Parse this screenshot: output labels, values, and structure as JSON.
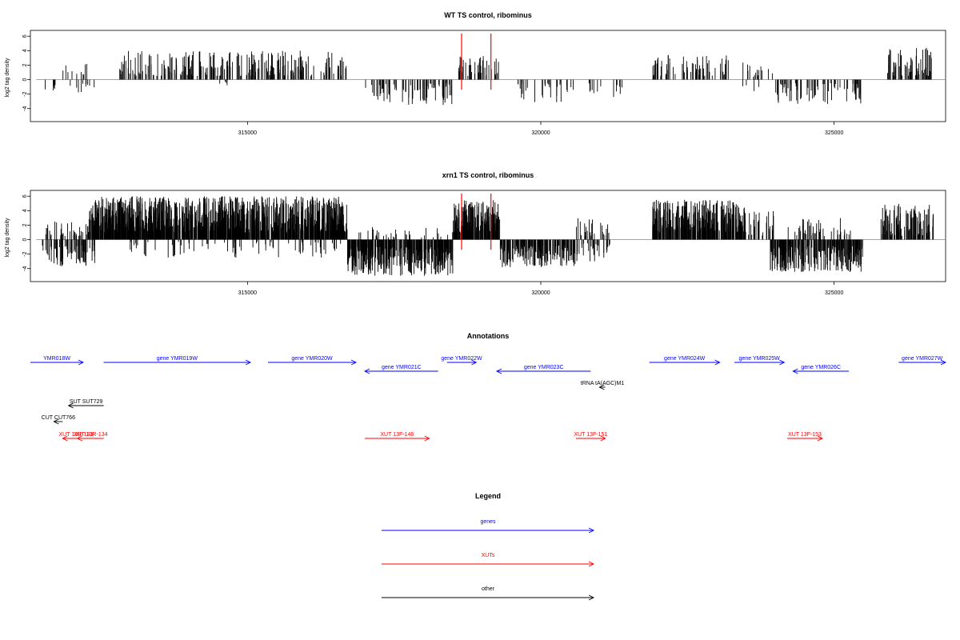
{
  "chart_data": [
    {
      "type": "bar",
      "title": "WT TS control, ribominus",
      "ylabel": "log2 tag density",
      "xlabel": "",
      "xlim": [
        311300,
        326900
      ],
      "ylim": [
        -5.8,
        6.8
      ],
      "xticks": [
        315000,
        320000,
        325000
      ],
      "xtick_labels": [
        "315000",
        "320000",
        "325000"
      ],
      "yticks": [
        -4,
        -2,
        0,
        2,
        4,
        6
      ],
      "ytick_labels": [
        "-4",
        "-2",
        "0",
        "2",
        "4",
        "6"
      ],
      "bar_color": "#000000",
      "highlight_color": "#ff0000",
      "highlights": [
        318650,
        319150
      ],
      "segments": [
        {
          "range": [
            311500,
            311800
          ],
          "sign": -1,
          "min": 0.5,
          "max": 1.5,
          "density": 0.02
        },
        {
          "range": [
            311800,
            312300
          ],
          "sign": 1,
          "min": 0.5,
          "max": 2.5,
          "density": 0.02
        },
        {
          "range": [
            311900,
            312400
          ],
          "sign": -1,
          "min": 0.5,
          "max": 2,
          "density": 0.02
        },
        {
          "range": [
            312800,
            316700
          ],
          "sign": 1,
          "min": 0.5,
          "max": 4,
          "density": 0.06
        },
        {
          "range": [
            314400,
            314800
          ],
          "sign": -1,
          "min": 0.3,
          "max": 1.5,
          "density": 0.01
        },
        {
          "range": [
            317000,
            318500
          ],
          "sign": -1,
          "min": 0.5,
          "max": 3.5,
          "density": 0.05
        },
        {
          "range": [
            318600,
            319300
          ],
          "sign": 1,
          "min": 0.5,
          "max": 3.5,
          "density": 0.06
        },
        {
          "range": [
            319600,
            320600
          ],
          "sign": -1,
          "min": 0.5,
          "max": 3.5,
          "density": 0.03
        },
        {
          "range": [
            320700,
            321400
          ],
          "sign": -1,
          "min": 0.5,
          "max": 2.5,
          "density": 0.02
        },
        {
          "range": [
            321900,
            323200
          ],
          "sign": 1,
          "min": 0.5,
          "max": 3.5,
          "density": 0.05
        },
        {
          "range": [
            323300,
            324000
          ],
          "sign": 1,
          "min": 0.3,
          "max": 2.5,
          "density": 0.02
        },
        {
          "range": [
            323400,
            323800
          ],
          "sign": -1,
          "min": 0.5,
          "max": 2,
          "density": 0.01
        },
        {
          "range": [
            324000,
            325500
          ],
          "sign": -1,
          "min": 0.5,
          "max": 3.5,
          "density": 0.05
        },
        {
          "range": [
            325900,
            326700
          ],
          "sign": 1,
          "min": 0.5,
          "max": 4.5,
          "density": 0.08
        }
      ]
    },
    {
      "type": "bar",
      "title": "xrn1 TS control, ribominus",
      "ylabel": "log2 tag density",
      "xlabel": "",
      "xlim": [
        311300,
        326900
      ],
      "ylim": [
        -5.8,
        6.8
      ],
      "xticks": [
        315000,
        320000,
        325000
      ],
      "xtick_labels": [
        "315000",
        "320000",
        "325000"
      ],
      "yticks": [
        -4,
        -2,
        0,
        2,
        4,
        6
      ],
      "ytick_labels": [
        "-4",
        "-2",
        "0",
        "2",
        "4",
        "6"
      ],
      "bar_color": "#000000",
      "highlight_color": "#ff0000",
      "highlights": [
        318650,
        319150
      ],
      "segments": [
        {
          "range": [
            311500,
            312300
          ],
          "sign": 1,
          "min": 0.5,
          "max": 2.5,
          "density": 0.05
        },
        {
          "range": [
            311500,
            312400
          ],
          "sign": -1,
          "min": 0.8,
          "max": 4,
          "density": 0.08
        },
        {
          "range": [
            312300,
            316700
          ],
          "sign": 1,
          "min": 1,
          "max": 6,
          "density": 0.22
        },
        {
          "range": [
            312800,
            316600
          ],
          "sign": -1,
          "min": 0.3,
          "max": 2.5,
          "density": 0.02
        },
        {
          "range": [
            316700,
            318500
          ],
          "sign": -1,
          "min": 1,
          "max": 5,
          "density": 0.18
        },
        {
          "range": [
            316900,
            318500
          ],
          "sign": 1,
          "min": 0.3,
          "max": 2,
          "density": 0.02
        },
        {
          "range": [
            318500,
            319300
          ],
          "sign": 1,
          "min": 1,
          "max": 5.5,
          "density": 0.22
        },
        {
          "range": [
            319300,
            320600
          ],
          "sign": -1,
          "min": 0.8,
          "max": 3.8,
          "density": 0.12
        },
        {
          "range": [
            320600,
            321200
          ],
          "sign": -1,
          "min": 0.5,
          "max": 3,
          "density": 0.05
        },
        {
          "range": [
            320600,
            321200
          ],
          "sign": 1,
          "min": 0.5,
          "max": 3,
          "density": 0.04
        },
        {
          "range": [
            321900,
            323500
          ],
          "sign": 1,
          "min": 1,
          "max": 5.5,
          "density": 0.2
        },
        {
          "range": [
            323500,
            324000
          ],
          "sign": 1,
          "min": 0.5,
          "max": 4,
          "density": 0.05
        },
        {
          "range": [
            323900,
            325500
          ],
          "sign": -1,
          "min": 0.8,
          "max": 4.5,
          "density": 0.15
        },
        {
          "range": [
            324200,
            325300
          ],
          "sign": 1,
          "min": 0.5,
          "max": 3,
          "density": 0.04
        },
        {
          "range": [
            325800,
            326700
          ],
          "sign": 1,
          "min": 0.5,
          "max": 5,
          "density": 0.12
        }
      ]
    }
  ],
  "annotations": {
    "title": "Annotations",
    "xlim": [
      311300,
      326900
    ],
    "features": [
      {
        "label": "YMR018W",
        "start": 311300,
        "end": 312200,
        "strand": "+",
        "kind": "gene",
        "row": 0
      },
      {
        "label": "gene YMR019W",
        "start": 312550,
        "end": 315050,
        "strand": "+",
        "kind": "gene",
        "row": 0
      },
      {
        "label": "gene YMR020W",
        "start": 315350,
        "end": 316850,
        "strand": "+",
        "kind": "gene",
        "row": 0
      },
      {
        "label": "gene YMR021C",
        "start": 317000,
        "end": 318250,
        "strand": "-",
        "kind": "gene",
        "row": 1
      },
      {
        "label": "gene YMR022W",
        "start": 318400,
        "end": 318900,
        "strand": "+",
        "kind": "gene",
        "row": 0
      },
      {
        "label": "gene YMR023C",
        "start": 319250,
        "end": 320850,
        "strand": "-",
        "kind": "gene",
        "row": 1
      },
      {
        "label": "gene YMR024W",
        "start": 321850,
        "end": 323050,
        "strand": "+",
        "kind": "gene",
        "row": 0
      },
      {
        "label": "gene YMR025W",
        "start": 323300,
        "end": 324150,
        "strand": "+",
        "kind": "gene",
        "row": 0
      },
      {
        "label": "gene YMR026C",
        "start": 324300,
        "end": 325250,
        "strand": "-",
        "kind": "gene",
        "row": 1
      },
      {
        "label": "gene YMR027W",
        "start": 326100,
        "end": 326900,
        "strand": "+",
        "kind": "gene",
        "row": 0
      },
      {
        "label": "tRNA tA(AGC)M1",
        "start": 321000,
        "end": 321100,
        "strand": "-",
        "kind": "other",
        "row": 2
      },
      {
        "label": "SUT SUT729",
        "start": 311950,
        "end": 312550,
        "strand": "-",
        "kind": "other",
        "row": 3
      },
      {
        "label": "CUT CUT766",
        "start": 311700,
        "end": 311850,
        "strand": "-",
        "kind": "other",
        "row": 4
      },
      {
        "label": "XUT 13R-133",
        "start": 311850,
        "end": 312300,
        "strand": "-",
        "kind": "xut",
        "row": 5
      },
      {
        "label": "XUT 13R-134",
        "start": 312100,
        "end": 312550,
        "strand": "-",
        "kind": "xut",
        "row": 5
      },
      {
        "label": "XUT 13F-146",
        "start": 317000,
        "end": 318100,
        "strand": "+",
        "kind": "xut",
        "row": 5
      },
      {
        "label": "XUT 13F-151",
        "start": 320600,
        "end": 321100,
        "strand": "+",
        "kind": "xut",
        "row": 5
      },
      {
        "label": "XUT 13F-153",
        "start": 324200,
        "end": 324800,
        "strand": "+",
        "kind": "xut",
        "row": 5
      }
    ]
  },
  "legend": {
    "title": "Legend",
    "items": [
      {
        "label": "genes",
        "color": "#0000ff"
      },
      {
        "label": "XUTs",
        "color": "#ff0000"
      },
      {
        "label": "other",
        "color": "#000000"
      }
    ]
  },
  "colors": {
    "gene": "#0000ff",
    "xut": "#ff0000",
    "other": "#000000",
    "axis": "#000000",
    "baseline": "#888888"
  }
}
